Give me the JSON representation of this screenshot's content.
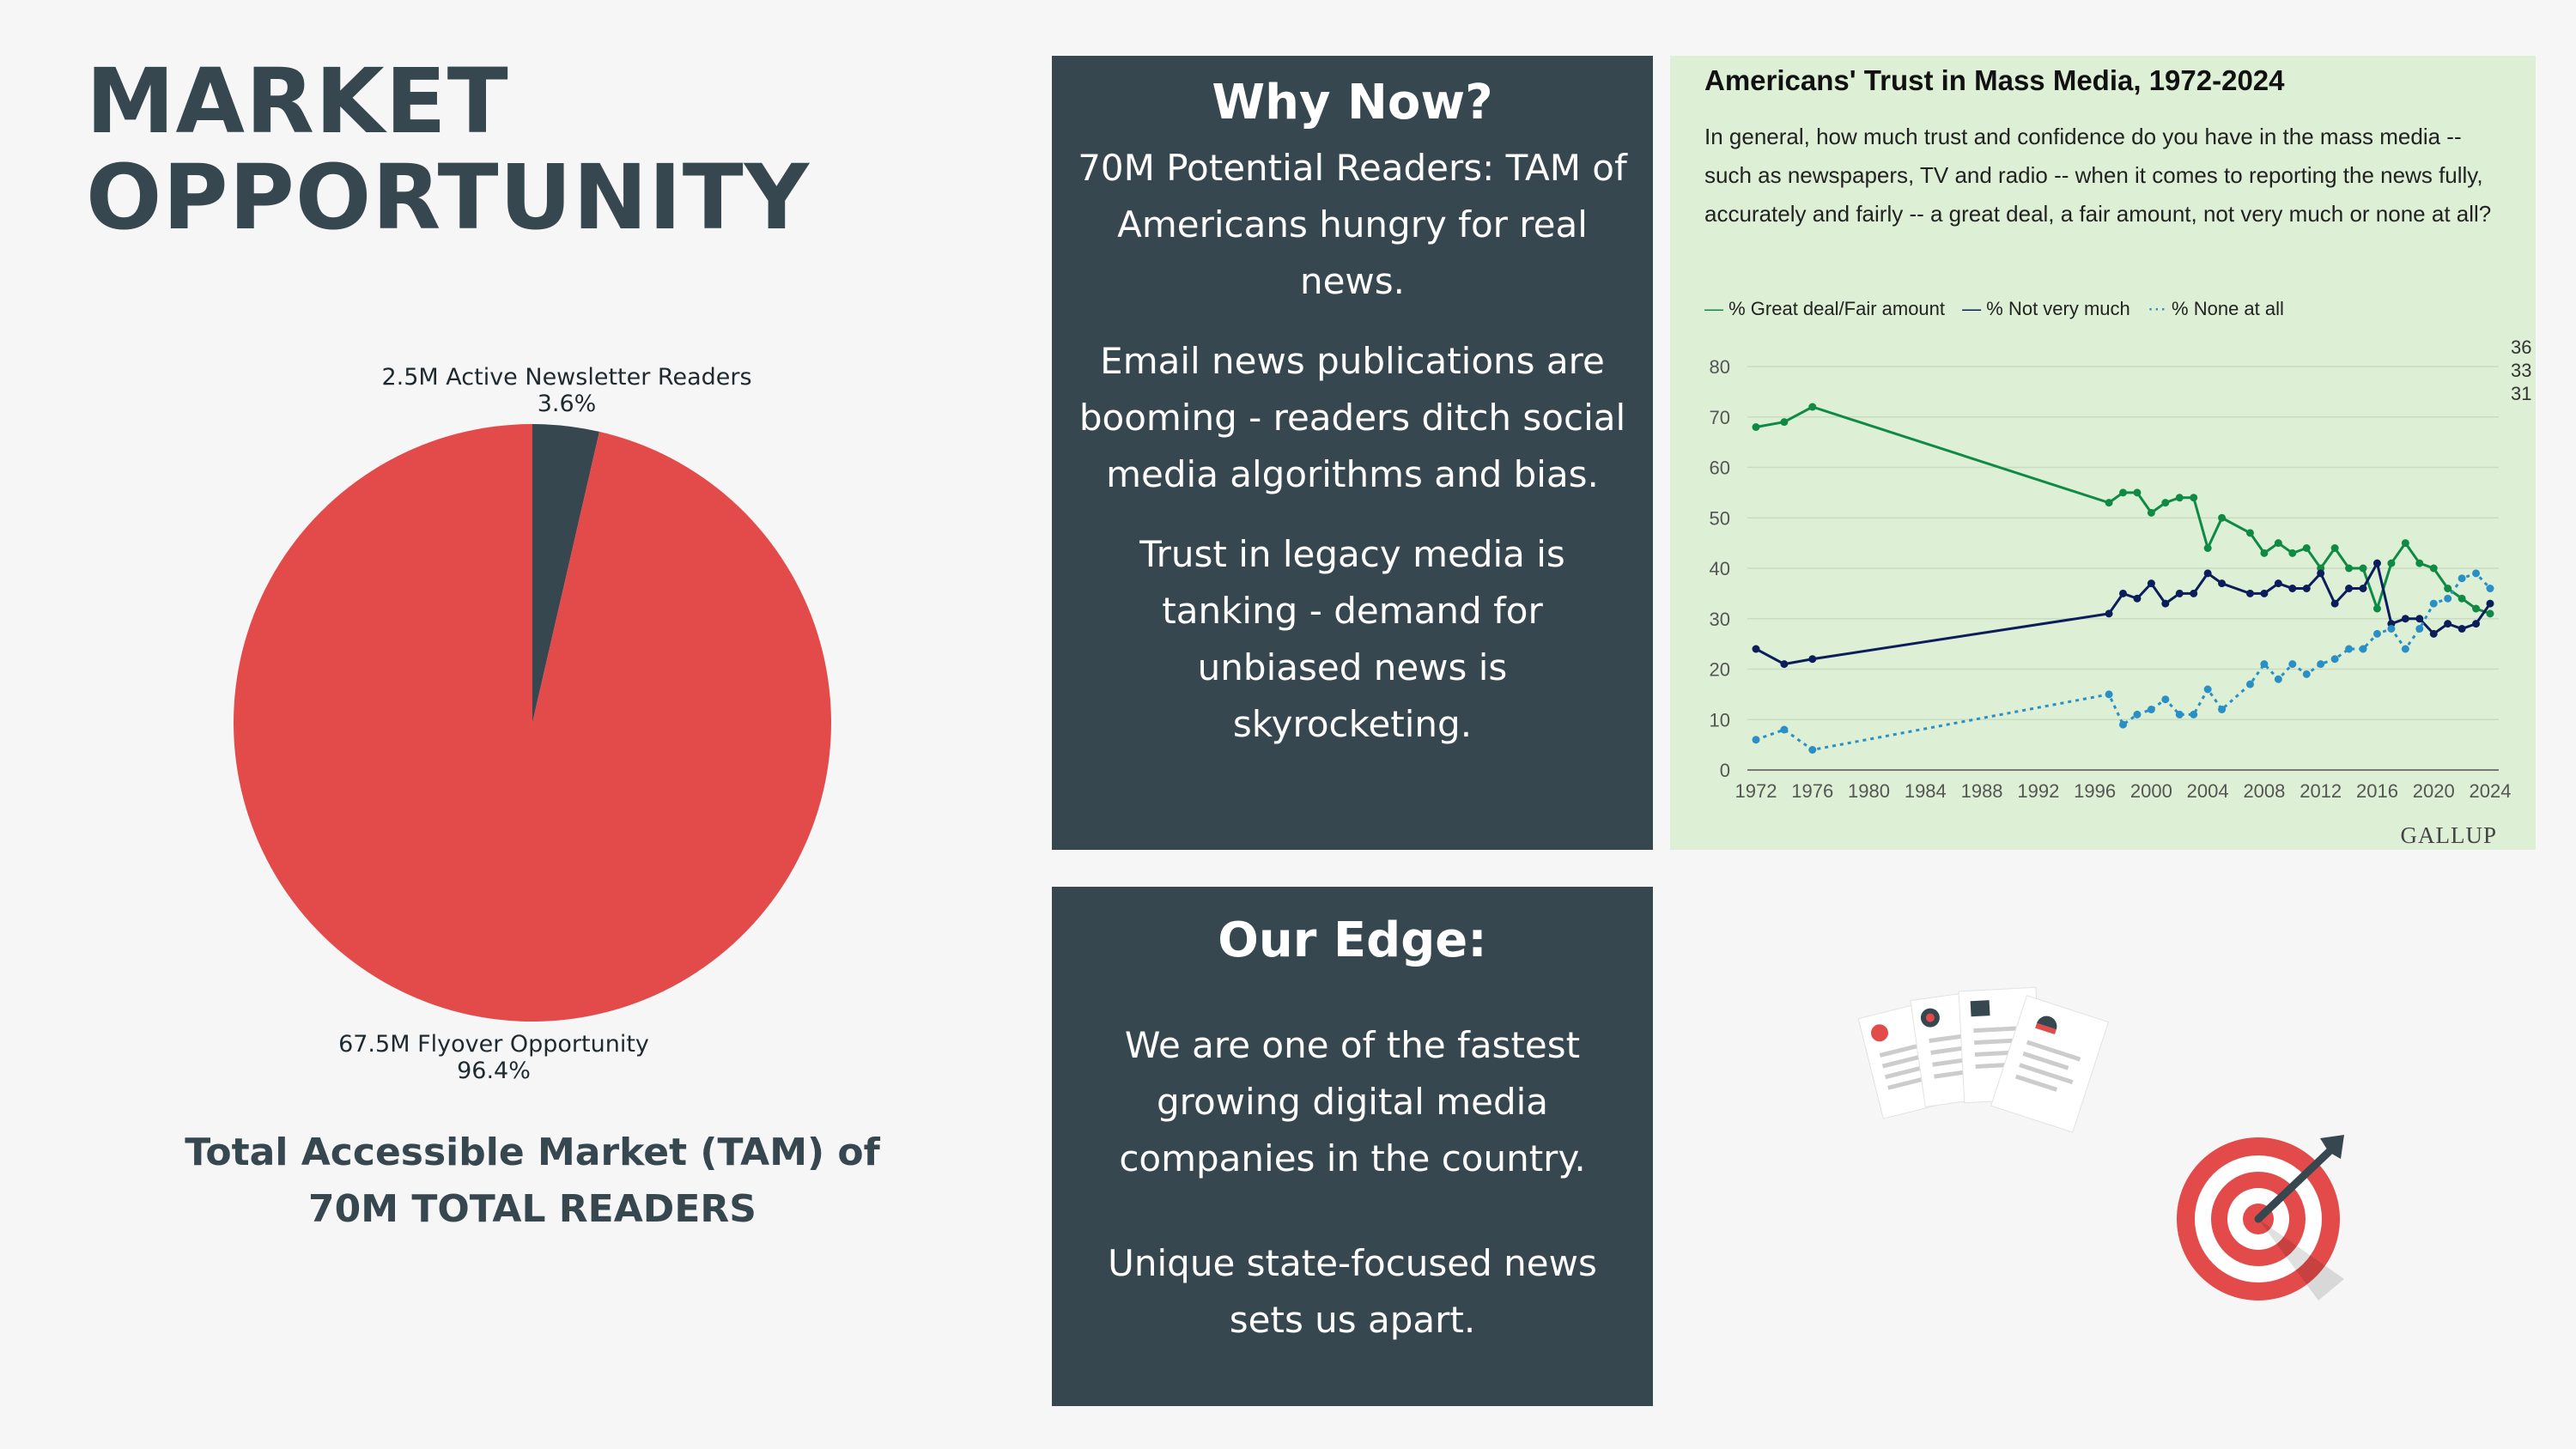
{
  "title": {
    "line1": "MARKET",
    "line2": "OPPORTUNITY"
  },
  "pie": {
    "slices": [
      {
        "label": "2.5M Active Newsletter Readers",
        "percent_label": "3.6%",
        "value": 3.6,
        "color": "#37474f"
      },
      {
        "label": "67.5M Flyover Opportunity",
        "percent_label": "96.4%",
        "value": 96.4,
        "color": "#e34b4b"
      }
    ]
  },
  "tam": {
    "line1": "Total Accessible Market (TAM) of",
    "line2": "70M TOTAL READERS"
  },
  "why_now": {
    "heading": "Why Now?",
    "p1": "70M Potential Readers: TAM of Americans hungry for real news.",
    "p2": "Email news publications are booming - readers ditch social media algorithms and bias.",
    "p3": "Trust in legacy media is tanking - demand for unbiased news is skyrocketing."
  },
  "our_edge": {
    "heading": "Our Edge:",
    "p1": "We are one of the fastest growing digital media companies in the country.",
    "p2": "Unique state-focused news sets us apart."
  },
  "chart_data": {
    "type": "line",
    "title": "Americans' Trust in Mass Media, 1972-2024",
    "subtitle": "In general, how much trust and confidence do you have in the mass media -- such as newspapers, TV and radio -- when it comes to reporting the news fully, accurately and fairly -- a great deal, a fair amount, not very much or none at all?",
    "brand": "GALLUP",
    "ylim": [
      0,
      80
    ],
    "xlim": [
      1972,
      2024
    ],
    "yticks": [
      "0",
      "10",
      "20",
      "30",
      "40",
      "50",
      "60",
      "70",
      "80"
    ],
    "xticks": [
      "1972",
      "1976",
      "1980",
      "1984",
      "1988",
      "1992",
      "1996",
      "2000",
      "2004",
      "2008",
      "2012",
      "2016",
      "2020",
      "2024"
    ],
    "legend_position": "top-left",
    "grid": true,
    "end_labels": [
      "36",
      "33",
      "31"
    ],
    "series": [
      {
        "name": "% Great deal/Fair amount",
        "color": "#0f8a45",
        "dash": false,
        "points": [
          [
            1972,
            68
          ],
          [
            1974,
            69
          ],
          [
            1976,
            72
          ],
          [
            1997,
            53
          ],
          [
            1998,
            55
          ],
          [
            1999,
            55
          ],
          [
            2000,
            51
          ],
          [
            2001,
            53
          ],
          [
            2002,
            54
          ],
          [
            2003,
            54
          ],
          [
            2004,
            44
          ],
          [
            2005,
            50
          ],
          [
            2007,
            47
          ],
          [
            2008,
            43
          ],
          [
            2009,
            45
          ],
          [
            2010,
            43
          ],
          [
            2011,
            44
          ],
          [
            2012,
            40
          ],
          [
            2013,
            44
          ],
          [
            2014,
            40
          ],
          [
            2015,
            40
          ],
          [
            2016,
            32
          ],
          [
            2017,
            41
          ],
          [
            2018,
            45
          ],
          [
            2019,
            41
          ],
          [
            2020,
            40
          ],
          [
            2021,
            36
          ],
          [
            2022,
            34
          ],
          [
            2023,
            32
          ],
          [
            2024,
            31
          ]
        ]
      },
      {
        "name": "% Not very much",
        "color": "#0b1e5b",
        "dash": false,
        "points": [
          [
            1972,
            24
          ],
          [
            1974,
            21
          ],
          [
            1976,
            22
          ],
          [
            1997,
            31
          ],
          [
            1998,
            35
          ],
          [
            1999,
            34
          ],
          [
            2000,
            37
          ],
          [
            2001,
            33
          ],
          [
            2002,
            35
          ],
          [
            2003,
            35
          ],
          [
            2004,
            39
          ],
          [
            2005,
            37
          ],
          [
            2007,
            35
          ],
          [
            2008,
            35
          ],
          [
            2009,
            37
          ],
          [
            2010,
            36
          ],
          [
            2011,
            36
          ],
          [
            2012,
            39
          ],
          [
            2013,
            33
          ],
          [
            2014,
            36
          ],
          [
            2015,
            36
          ],
          [
            2016,
            41
          ],
          [
            2017,
            29
          ],
          [
            2018,
            30
          ],
          [
            2019,
            30
          ],
          [
            2020,
            27
          ],
          [
            2021,
            29
          ],
          [
            2022,
            28
          ],
          [
            2023,
            29
          ],
          [
            2024,
            33
          ]
        ]
      },
      {
        "name": "% None at all",
        "color": "#2a8fc4",
        "dash": true,
        "points": [
          [
            1972,
            6
          ],
          [
            1974,
            8
          ],
          [
            1976,
            4
          ],
          [
            1997,
            15
          ],
          [
            1998,
            9
          ],
          [
            1999,
            11
          ],
          [
            2000,
            12
          ],
          [
            2001,
            14
          ],
          [
            2002,
            11
          ],
          [
            2003,
            11
          ],
          [
            2004,
            16
          ],
          [
            2005,
            12
          ],
          [
            2007,
            17
          ],
          [
            2008,
            21
          ],
          [
            2009,
            18
          ],
          [
            2010,
            21
          ],
          [
            2011,
            19
          ],
          [
            2012,
            21
          ],
          [
            2013,
            22
          ],
          [
            2014,
            24
          ],
          [
            2015,
            24
          ],
          [
            2016,
            27
          ],
          [
            2017,
            28
          ],
          [
            2018,
            24
          ],
          [
            2019,
            28
          ],
          [
            2020,
            33
          ],
          [
            2021,
            34
          ],
          [
            2022,
            38
          ],
          [
            2023,
            39
          ],
          [
            2024,
            36
          ]
        ]
      }
    ]
  },
  "icons": {
    "news": "news-documents-icon",
    "target": "target-dart-icon"
  }
}
